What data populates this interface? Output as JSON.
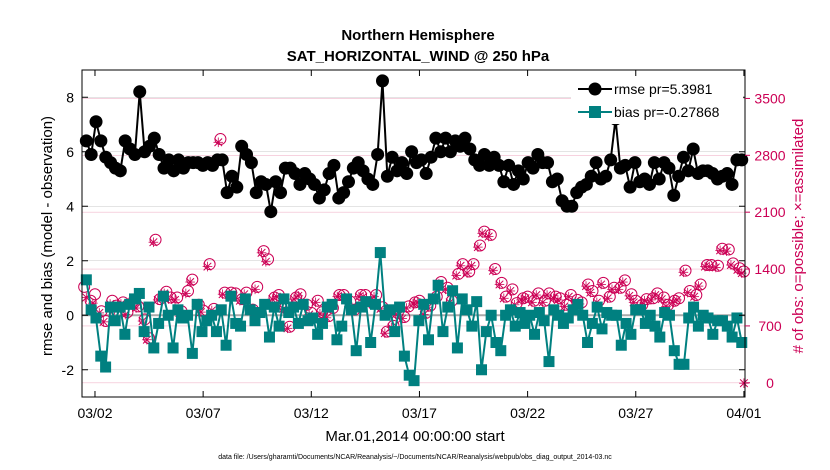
{
  "chart_data": {
    "type": "line",
    "title": "Northern Hemisphere",
    "subtitle": "SAT_HORIZONTAL_WIND @ 250 hPa",
    "ylabel_left": "rmse and bias (model - observation)",
    "ylabel_right": "# of obs: o=possible; ×=assimilated",
    "xlabel": "Mar.01,2014 00:00:00 start",
    "footer": "data file: /Users/gharamti/Documents/NCAR/Reanalysis/~/Documents/NCAR/Reanalysis/webpub/obs_diag_output_2014-03.nc",
    "ylim_left": [
      -3,
      9
    ],
    "ylim_right": [
      -175,
      3850
    ],
    "xlim_days": [
      0.4,
      31.05
    ],
    "left_ticks": [
      "-2",
      "0",
      "2",
      "4",
      "6",
      "8"
    ],
    "left_tick_values": [
      -2,
      0,
      2,
      4,
      6,
      8
    ],
    "right_ticks": [
      "0",
      "700",
      "1400",
      "2100",
      "2800",
      "3500"
    ],
    "right_tick_values": [
      0,
      700,
      1400,
      2100,
      2800,
      3500
    ],
    "x_ticks": [
      "03/02",
      "03/07",
      "03/12",
      "03/17",
      "03/22",
      "03/27",
      "04/01"
    ],
    "x_tick_days": [
      1,
      6,
      11,
      16,
      21,
      26,
      31
    ],
    "series": [
      {
        "name": "rmse",
        "legend": "rmse pr=5.3981",
        "color": "#000000",
        "values": [
          6.4,
          5.9,
          7.1,
          6.4,
          5.8,
          5.6,
          5.4,
          5.3,
          6.4,
          6.1,
          5.9,
          8.2,
          6.0,
          6.2,
          6.5,
          5.9,
          5.4,
          5.7,
          5.3,
          5.7,
          5.4,
          5.6,
          5.6,
          5.6,
          5.5,
          5.6,
          5.5,
          5.7,
          5.7,
          4.5,
          5.1,
          4.7,
          6.2,
          5.9,
          5.6,
          4.5,
          4.9,
          4.8,
          3.8,
          4.9,
          4.5,
          5.4,
          5.4,
          5.2,
          4.8,
          5.2,
          5.0,
          4.8,
          4.3,
          4.6,
          5.2,
          5.5,
          4.3,
          4.5,
          4.9,
          5.4,
          5.6,
          5.3,
          5.0,
          4.8,
          5.9,
          8.6,
          5.1,
          5.8,
          5.3,
          5.6,
          5.2,
          6.0,
          5.6,
          5.7,
          5.2,
          5.8,
          6.5,
          6.0,
          6.5,
          6.0,
          6.4,
          6.2,
          6.5,
          6.1,
          5.7,
          5.5,
          5.9,
          5.5,
          5.8,
          5.5,
          4.9,
          5.5,
          4.8,
          5.3,
          5.0,
          5.6,
          5.4,
          5.9,
          5.6,
          5.6,
          4.9,
          5.0,
          4.2,
          4.0,
          4.0,
          4.5,
          4.7,
          4.8,
          5.1,
          5.6,
          5.0,
          5.1,
          5.7,
          7.2,
          5.4,
          5.5,
          4.7,
          5.6,
          4.9,
          5.0,
          4.8,
          5.6,
          5.0,
          5.6,
          5.4,
          4.4,
          5.1,
          5.8,
          5.3,
          6.1,
          5.2,
          5.3,
          5.3,
          5.2,
          5.0,
          5.1,
          5.2,
          4.8,
          5.7,
          5.7
        ]
      },
      {
        "name": "bias",
        "legend": "bias pr=-0.27868",
        "color": "#008080",
        "values": [
          1.3,
          0.2,
          -0.1,
          -1.5,
          -1.9,
          0.3,
          -0.2,
          0.3,
          -0.7,
          0.4,
          0.6,
          0.8,
          -0.6,
          0.3,
          -1.2,
          -0.3,
          0.7,
          0.0,
          -1.2,
          0.2,
          -0.1,
          0.0,
          -1.4,
          0.4,
          -0.6,
          -0.2,
          0.0,
          -0.6,
          0.2,
          -1.1,
          0.7,
          -0.3,
          -0.4,
          0.6,
          0.2,
          -0.2,
          0.1,
          0.4,
          -0.8,
          0.3,
          -0.4,
          0.6,
          0.1,
          0.3,
          -0.3,
          0.4,
          -0.2,
          -0.1,
          -0.7,
          -0.3,
          0.3,
          0.4,
          -0.9,
          -0.4,
          0.6,
          0.2,
          -1.3,
          0.3,
          0.5,
          -1.0,
          0.4,
          2.3,
          0.0,
          0.2,
          -0.6,
          0.3,
          -1.5,
          -2.2,
          -2.4,
          -0.2,
          0.4,
          -0.9,
          0.6,
          1.1,
          -0.6,
          0.3,
          0.9,
          -1.2,
          0.6,
          0.2,
          -0.4,
          0.5,
          -2.0,
          -0.6,
          0.0,
          -1.0,
          -1.3,
          0.0,
          0.2,
          -0.4,
          0.1,
          -0.3,
          0.0,
          -0.7,
          0.1,
          -0.2,
          -1.7,
          0.2,
          0.0,
          -0.3,
          -0.1,
          0.2,
          0.4,
          0.0,
          -1.0,
          -0.3,
          0.3,
          -0.5,
          0.1,
          0.0,
          0.0,
          -1.1,
          -0.3,
          -0.7,
          0.2,
          0.2,
          -0.3,
          0.0,
          -0.4,
          -0.8,
          0.1,
          0.0,
          -1.3,
          -1.8,
          -1.8,
          -0.1,
          0.3,
          -0.4,
          0.0,
          -0.1,
          -0.7,
          -0.2,
          -0.2,
          -0.4,
          -0.8,
          -0.1,
          -1.0
        ]
      }
    ],
    "obs_possible_points": [
      [
        0.5,
        1180
      ],
      [
        0.8,
        1010
      ],
      [
        1.0,
        1090
      ],
      [
        1.3,
        880
      ],
      [
        1.5,
        760
      ],
      [
        1.8,
        1010
      ],
      [
        2.0,
        950
      ],
      [
        2.3,
        990
      ],
      [
        2.5,
        870
      ],
      [
        2.8,
        1010
      ],
      [
        3.0,
        940
      ],
      [
        3.3,
        780
      ],
      [
        3.5,
        550
      ],
      [
        3.8,
        1760
      ],
      [
        4.0,
        1030
      ],
      [
        4.3,
        1120
      ],
      [
        4.5,
        1050
      ],
      [
        4.8,
        1050
      ],
      [
        5.0,
        880
      ],
      [
        5.3,
        1130
      ],
      [
        5.5,
        1270
      ],
      [
        5.8,
        960
      ],
      [
        6.0,
        890
      ],
      [
        6.3,
        1460
      ],
      [
        6.5,
        910
      ],
      [
        6.8,
        3000
      ],
      [
        7.0,
        1110
      ],
      [
        7.3,
        1110
      ],
      [
        7.5,
        1100
      ],
      [
        7.8,
        1030
      ],
      [
        8.0,
        1110
      ],
      [
        8.3,
        900
      ],
      [
        8.5,
        1180
      ],
      [
        8.8,
        1620
      ],
      [
        9.0,
        1520
      ],
      [
        9.3,
        1050
      ],
      [
        9.5,
        1080
      ],
      [
        9.8,
        930
      ],
      [
        10.0,
        690
      ],
      [
        10.3,
        1050
      ],
      [
        10.5,
        1090
      ],
      [
        10.8,
        960
      ],
      [
        11.0,
        860
      ],
      [
        11.3,
        1010
      ],
      [
        11.5,
        870
      ],
      [
        11.8,
        820
      ],
      [
        12.0,
        920
      ],
      [
        12.3,
        1080
      ],
      [
        12.5,
        1080
      ],
      [
        12.8,
        1000
      ],
      [
        13.0,
        900
      ],
      [
        13.3,
        1080
      ],
      [
        13.5,
        1080
      ],
      [
        13.8,
        990
      ],
      [
        14.0,
        1080
      ],
      [
        14.3,
        930
      ],
      [
        14.5,
        630
      ],
      [
        14.8,
        700
      ],
      [
        15.0,
        860
      ],
      [
        15.3,
        810
      ],
      [
        15.5,
        940
      ],
      [
        15.8,
        990
      ],
      [
        16.0,
        1010
      ],
      [
        16.3,
        860
      ],
      [
        16.5,
        950
      ],
      [
        16.8,
        1060
      ],
      [
        17.0,
        1240
      ],
      [
        17.3,
        1170
      ],
      [
        17.5,
        1010
      ],
      [
        17.8,
        1340
      ],
      [
        18.0,
        1460
      ],
      [
        18.3,
        1370
      ],
      [
        18.5,
        1460
      ],
      [
        18.8,
        1690
      ],
      [
        19.0,
        1860
      ],
      [
        19.3,
        1820
      ],
      [
        19.5,
        1400
      ],
      [
        19.8,
        1230
      ],
      [
        20.0,
        1060
      ],
      [
        20.3,
        1150
      ],
      [
        20.5,
        980
      ],
      [
        20.8,
        1040
      ],
      [
        21.0,
        1060
      ],
      [
        21.3,
        1010
      ],
      [
        21.5,
        1100
      ],
      [
        21.8,
        1010
      ],
      [
        22.0,
        1100
      ],
      [
        22.3,
        1060
      ],
      [
        22.5,
        1040
      ],
      [
        22.8,
        960
      ],
      [
        23.0,
        1080
      ],
      [
        23.3,
        1020
      ],
      [
        23.5,
        990
      ],
      [
        23.8,
        1210
      ],
      [
        24.0,
        1130
      ],
      [
        24.3,
        1010
      ],
      [
        24.5,
        1230
      ],
      [
        24.8,
        1060
      ],
      [
        25.0,
        1170
      ],
      [
        25.3,
        1170
      ],
      [
        25.5,
        1260
      ],
      [
        25.8,
        1090
      ],
      [
        26.0,
        1010
      ],
      [
        26.3,
        960
      ],
      [
        26.5,
        1030
      ],
      [
        26.8,
        1040
      ],
      [
        27.0,
        1100
      ],
      [
        27.3,
        1050
      ],
      [
        27.5,
        960
      ],
      [
        27.8,
        1010
      ],
      [
        28.0,
        1040
      ],
      [
        28.3,
        1380
      ],
      [
        28.5,
        1130
      ],
      [
        28.8,
        1080
      ],
      [
        29.0,
        1210
      ],
      [
        29.3,
        1450
      ],
      [
        29.5,
        1450
      ],
      [
        29.8,
        1440
      ],
      [
        30.0,
        1650
      ],
      [
        30.3,
        1640
      ],
      [
        30.5,
        1470
      ],
      [
        30.8,
        1410
      ],
      [
        31.0,
        1370
      ]
    ],
    "obs_assimilated_points": [
      [
        0.6,
        1050
      ],
      [
        0.9,
        980
      ],
      [
        1.2,
        860
      ],
      [
        1.4,
        750
      ],
      [
        1.7,
        970
      ],
      [
        1.9,
        900
      ],
      [
        2.2,
        970
      ],
      [
        2.4,
        840
      ],
      [
        2.7,
        980
      ],
      [
        2.9,
        920
      ],
      [
        3.2,
        760
      ],
      [
        3.4,
        530
      ],
      [
        3.7,
        1730
      ],
      [
        3.9,
        1020
      ],
      [
        4.2,
        1100
      ],
      [
        4.4,
        1030
      ],
      [
        4.7,
        1020
      ],
      [
        4.9,
        860
      ],
      [
        5.2,
        1100
      ],
      [
        5.4,
        1240
      ],
      [
        5.7,
        940
      ],
      [
        5.9,
        870
      ],
      [
        6.2,
        1430
      ],
      [
        6.4,
        890
      ],
      [
        6.7,
        2960
      ],
      [
        6.9,
        1090
      ],
      [
        7.2,
        1080
      ],
      [
        7.4,
        1070
      ],
      [
        7.7,
        1010
      ],
      [
        7.9,
        1090
      ],
      [
        8.2,
        880
      ],
      [
        8.4,
        1150
      ],
      [
        8.7,
        1600
      ],
      [
        8.9,
        1490
      ],
      [
        9.2,
        1030
      ],
      [
        9.4,
        1060
      ],
      [
        9.7,
        910
      ],
      [
        9.9,
        670
      ],
      [
        10.2,
        1030
      ],
      [
        10.4,
        1070
      ],
      [
        10.7,
        940
      ],
      [
        10.9,
        840
      ],
      [
        11.2,
        990
      ],
      [
        11.4,
        850
      ],
      [
        11.7,
        800
      ],
      [
        11.9,
        900
      ],
      [
        12.2,
        1060
      ],
      [
        12.4,
        1060
      ],
      [
        12.7,
        980
      ],
      [
        12.9,
        880
      ],
      [
        13.2,
        1060
      ],
      [
        13.4,
        1060
      ],
      [
        13.7,
        970
      ],
      [
        13.9,
        1060
      ],
      [
        14.2,
        910
      ],
      [
        14.4,
        610
      ],
      [
        14.7,
        680
      ],
      [
        14.9,
        840
      ],
      [
        15.2,
        790
      ],
      [
        15.4,
        920
      ],
      [
        15.7,
        970
      ],
      [
        15.9,
        990
      ],
      [
        16.2,
        840
      ],
      [
        16.4,
        930
      ],
      [
        16.7,
        1040
      ],
      [
        16.9,
        1220
      ],
      [
        17.2,
        1150
      ],
      [
        17.4,
        990
      ],
      [
        17.7,
        1320
      ],
      [
        17.9,
        1440
      ],
      [
        18.2,
        1350
      ],
      [
        18.4,
        1440
      ],
      [
        18.7,
        1670
      ],
      [
        18.9,
        1840
      ],
      [
        19.2,
        1800
      ],
      [
        19.4,
        1380
      ],
      [
        19.7,
        1210
      ],
      [
        19.9,
        1040
      ],
      [
        20.2,
        1130
      ],
      [
        20.4,
        960
      ],
      [
        20.7,
        1020
      ],
      [
        20.9,
        1040
      ],
      [
        21.2,
        990
      ],
      [
        21.4,
        1080
      ],
      [
        21.7,
        990
      ],
      [
        21.9,
        1080
      ],
      [
        22.2,
        1040
      ],
      [
        22.4,
        1020
      ],
      [
        22.7,
        940
      ],
      [
        22.9,
        1060
      ],
      [
        23.2,
        1000
      ],
      [
        23.4,
        970
      ],
      [
        23.7,
        1190
      ],
      [
        23.9,
        1110
      ],
      [
        24.2,
        990
      ],
      [
        24.4,
        1210
      ],
      [
        24.7,
        1040
      ],
      [
        24.9,
        1150
      ],
      [
        25.2,
        1150
      ],
      [
        25.4,
        1240
      ],
      [
        25.7,
        1070
      ],
      [
        25.9,
        990
      ],
      [
        26.2,
        940
      ],
      [
        26.4,
        1010
      ],
      [
        26.7,
        1020
      ],
      [
        26.9,
        1080
      ],
      [
        27.2,
        1030
      ],
      [
        27.4,
        940
      ],
      [
        27.7,
        990
      ],
      [
        27.9,
        1020
      ],
      [
        28.2,
        1360
      ],
      [
        28.4,
        1110
      ],
      [
        28.7,
        1060
      ],
      [
        28.9,
        1190
      ],
      [
        29.2,
        1430
      ],
      [
        29.4,
        1430
      ],
      [
        29.7,
        1420
      ],
      [
        29.9,
        1630
      ],
      [
        30.2,
        1620
      ],
      [
        30.4,
        1450
      ],
      [
        30.7,
        1390
      ],
      [
        30.9,
        1350
      ],
      [
        31.0,
        -5
      ]
    ],
    "zero_line": true
  }
}
